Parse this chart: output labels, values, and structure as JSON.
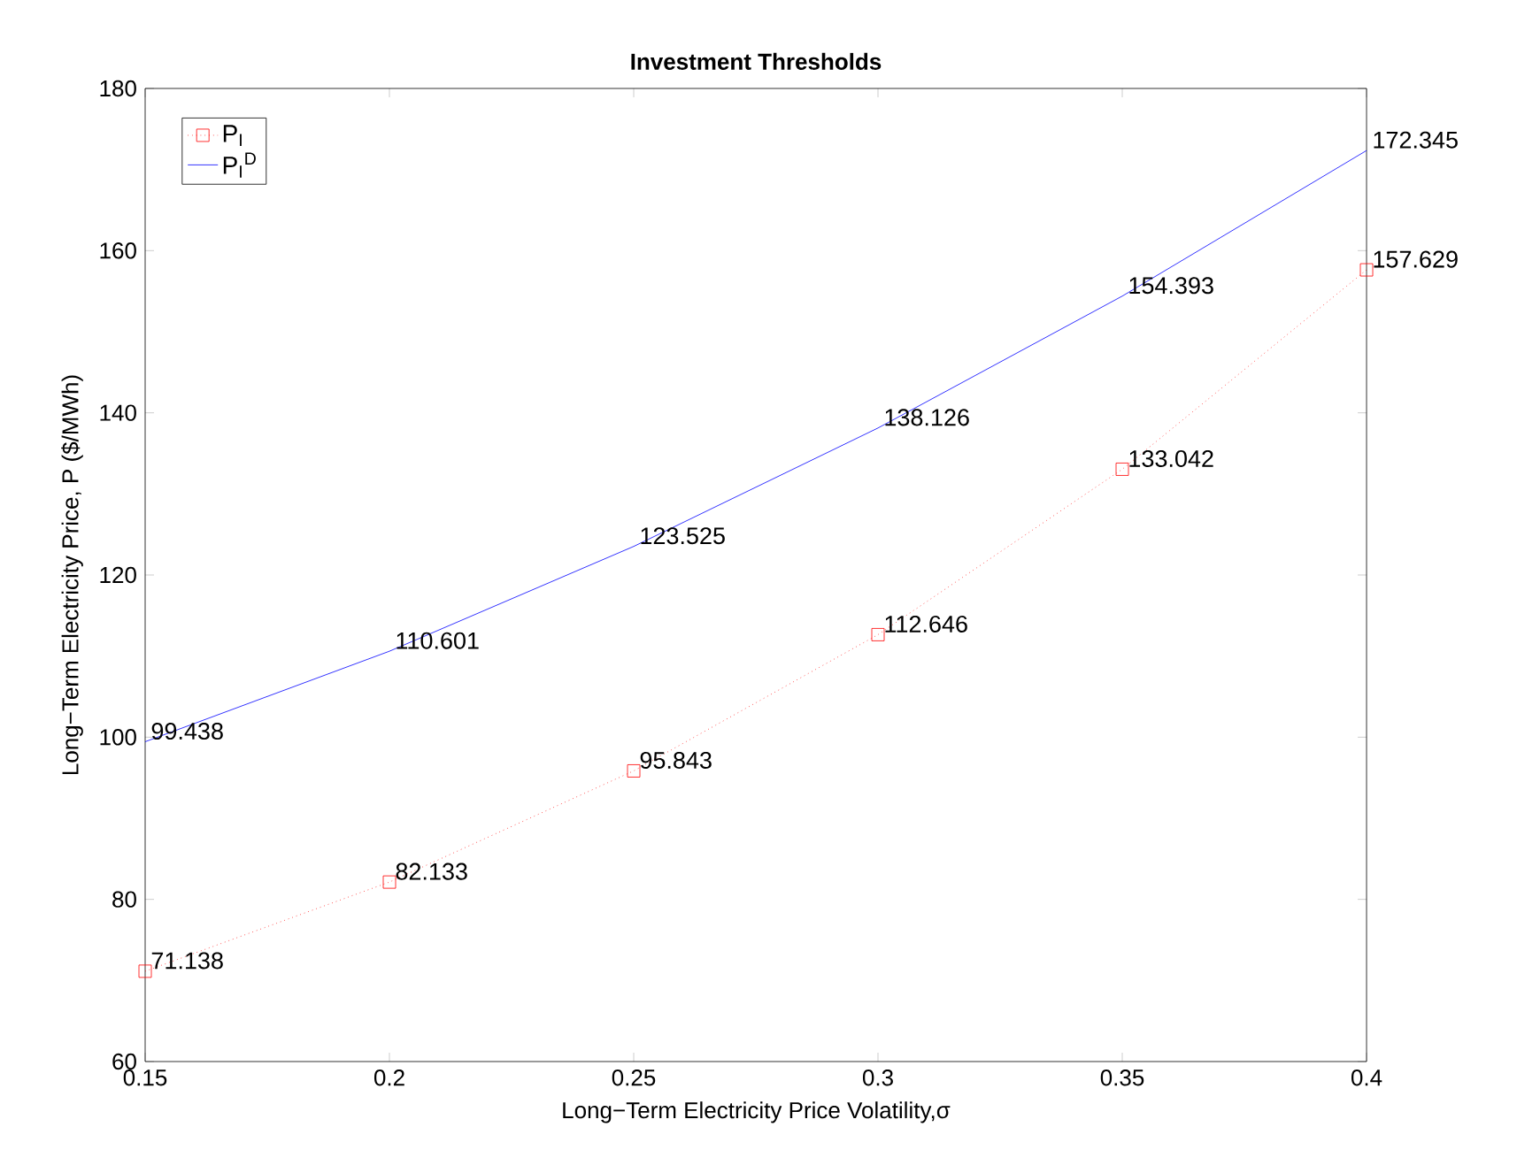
{
  "chart_data": {
    "type": "line",
    "title": "Investment Thresholds",
    "xlabel": "Long−Term Electricity Price Volatility,σ",
    "ylabel": "Long−Term Electricity Price, P ($/MWh)",
    "x": [
      0.15,
      0.2,
      0.25,
      0.3,
      0.35,
      0.4
    ],
    "series": [
      {
        "name": "P$_{I}$",
        "color": "#ff0000",
        "marker": "square",
        "line_style": "dotted",
        "values": [
          71.138,
          82.133,
          95.843,
          112.646,
          133.042,
          157.629
        ]
      },
      {
        "name": "P$_{I}$$^{D}$",
        "color": "#0000ff",
        "marker": "none",
        "line_style": "solid",
        "values": [
          99.438,
          110.601,
          123.525,
          138.126,
          154.393,
          172.345
        ]
      }
    ],
    "data_labels": true,
    "xlim": [
      0.15,
      0.4
    ],
    "ylim": [
      60,
      180
    ],
    "xticks": [
      0.15,
      0.2,
      0.25,
      0.3,
      0.35,
      0.4
    ],
    "yticks": [
      60,
      80,
      100,
      120,
      140,
      160,
      180
    ],
    "grid": false,
    "legend": "top left"
  }
}
